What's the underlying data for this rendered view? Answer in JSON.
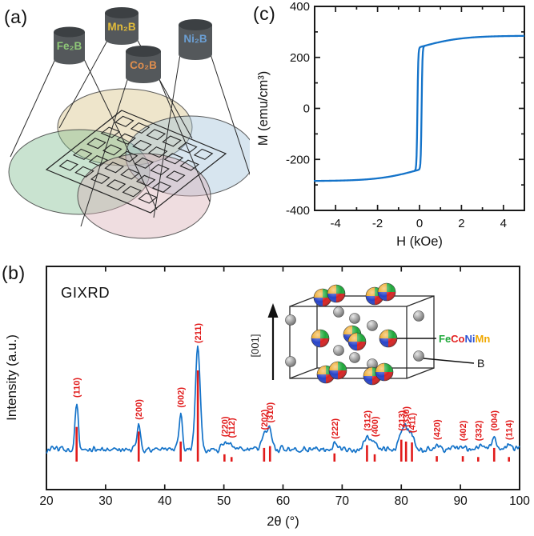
{
  "figure": {
    "panel_labels": {
      "a": "(a)",
      "b": "(b)",
      "c": "(c)"
    }
  },
  "panel_a": {
    "targets": [
      {
        "label": "Fe₂B",
        "color": "#8fc878"
      },
      {
        "label": "Mn₂B",
        "color": "#e3bd3a"
      },
      {
        "label": "Co₂B",
        "color": "#df8e4e"
      },
      {
        "label": "Ni₂B",
        "color": "#6b9fd4"
      }
    ],
    "substrate_grid": {
      "rows": 5,
      "cols": 6
    },
    "plume_colors": {
      "yellow": "#d6c083",
      "green": "#7fbd8e",
      "blue": "#9fc0d8",
      "pink": "#d8aeb4"
    }
  },
  "panel_b": {
    "technique_label": "GIXRD",
    "xlabel": "2θ (°)",
    "ylabel": "Intensity (a.u.)",
    "inset": {
      "direction_label": "[001]",
      "alloy_legend": [
        {
          "text": "Fe",
          "color": "#1fa83a"
        },
        {
          "text": "Co",
          "color": "#e32020"
        },
        {
          "text": "Ni",
          "color": "#2d55d4"
        },
        {
          "text": "Mn",
          "color": "#f0a800"
        }
      ],
      "boron_label": "B",
      "atom_colors": {
        "quad_top_left": "#eda217",
        "quad_top_right": "#1fa83a",
        "quad_bottom_left": "#2743c8",
        "quad_bottom_right": "#d92121",
        "boron_center": "#e8e8e8",
        "boron_edge": "#6f6f6f"
      }
    }
  },
  "panel_c": {
    "xlabel": "H (kOe)",
    "ylabel": "M (emu/cm³)"
  },
  "chart_data": [
    {
      "id": "gixrd-pattern",
      "type": "line",
      "title": "GIXRD",
      "xlabel": "2θ (°)",
      "ylabel": "Intensity (a.u.)",
      "xlim": [
        20,
        100
      ],
      "x_ticks": [
        20,
        30,
        40,
        50,
        60,
        70,
        80,
        90,
        100
      ],
      "grid": false,
      "curve_color": "#1473c9",
      "reference_color": "#e11b1b",
      "baseline_level": 0.06,
      "noise_amplitude": 0.035,
      "peaks": [
        {
          "hkl": "(110)",
          "two_theta": 25.1,
          "height": 0.46,
          "ref": 0.38,
          "sigma": 0.28
        },
        {
          "hkl": "(200)",
          "two_theta": 35.6,
          "height": 0.24,
          "ref": 0.33,
          "sigma": 0.3
        },
        {
          "hkl": "(002)",
          "two_theta": 42.7,
          "height": 0.36,
          "ref": 0.22,
          "sigma": 0.3
        },
        {
          "hkl": "(211)",
          "two_theta": 45.6,
          "height": 1.0,
          "ref": 1.0,
          "sigma": 0.4
        },
        {
          "hkl": "(220)",
          "two_theta": 50.1,
          "height": 0.07,
          "ref": 0.08,
          "sigma": 0.4
        },
        {
          "hkl": "(112)",
          "two_theta": 51.3,
          "height": 0.06,
          "ref": 0.05,
          "sigma": 0.4
        },
        {
          "hkl": "(202)",
          "two_theta": 56.8,
          "height": 0.14,
          "ref": 0.15,
          "sigma": 0.45
        },
        {
          "hkl": "(310)",
          "two_theta": 57.8,
          "height": 0.21,
          "ref": 0.17,
          "sigma": 0.4
        },
        {
          "hkl": "(222)",
          "two_theta": 68.7,
          "height": 0.05,
          "ref": 0.09,
          "sigma": 0.5
        },
        {
          "hkl": "(312)",
          "two_theta": 74.2,
          "height": 0.13,
          "ref": 0.18,
          "sigma": 0.55
        },
        {
          "hkl": "(400)",
          "two_theta": 75.5,
          "height": 0.07,
          "ref": 0.08,
          "sigma": 0.5
        },
        {
          "hkl": "(213)",
          "two_theta": 80.0,
          "height": 0.13,
          "ref": 0.24,
          "sigma": 0.5
        },
        {
          "hkl": "(330)",
          "two_theta": 80.8,
          "height": 0.17,
          "ref": 0.22,
          "sigma": 0.55
        },
        {
          "hkl": "(411)",
          "two_theta": 81.8,
          "height": 0.11,
          "ref": 0.21,
          "sigma": 0.5
        },
        {
          "hkl": "(420)",
          "two_theta": 86.0,
          "height": 0.04,
          "ref": 0.06,
          "sigma": 0.5
        },
        {
          "hkl": "(402)",
          "two_theta": 90.4,
          "height": 0.03,
          "ref": 0.06,
          "sigma": 0.5
        },
        {
          "hkl": "(332)",
          "two_theta": 93.0,
          "height": 0.03,
          "ref": 0.05,
          "sigma": 0.5
        },
        {
          "hkl": "(004)",
          "two_theta": 95.7,
          "height": 0.13,
          "ref": 0.15,
          "sigma": 0.45
        },
        {
          "hkl": "(114)",
          "two_theta": 98.2,
          "height": 0.04,
          "ref": 0.05,
          "sigma": 0.5
        }
      ]
    },
    {
      "id": "hysteresis-loop",
      "type": "line",
      "xlabel": "H (kOe)",
      "ylabel": "M (emu/cm³)",
      "xlim": [
        -5,
        5
      ],
      "ylim": [
        -400,
        400
      ],
      "x_ticks": [
        -4,
        -2,
        0,
        2,
        4
      ],
      "y_ticks": [
        -400,
        -200,
        0,
        200,
        400
      ],
      "x_minor_step": 1,
      "y_minor_step": 100,
      "grid": false,
      "color": "#1473c9",
      "loop": {
        "saturation_magnetization_emu_cm3": 285,
        "coercivity_kOe": 0.1,
        "steep_component": 240,
        "steep_width_kOe": 0.04,
        "gradual_component": 45,
        "gradual_width_kOe": 2.0
      }
    }
  ]
}
